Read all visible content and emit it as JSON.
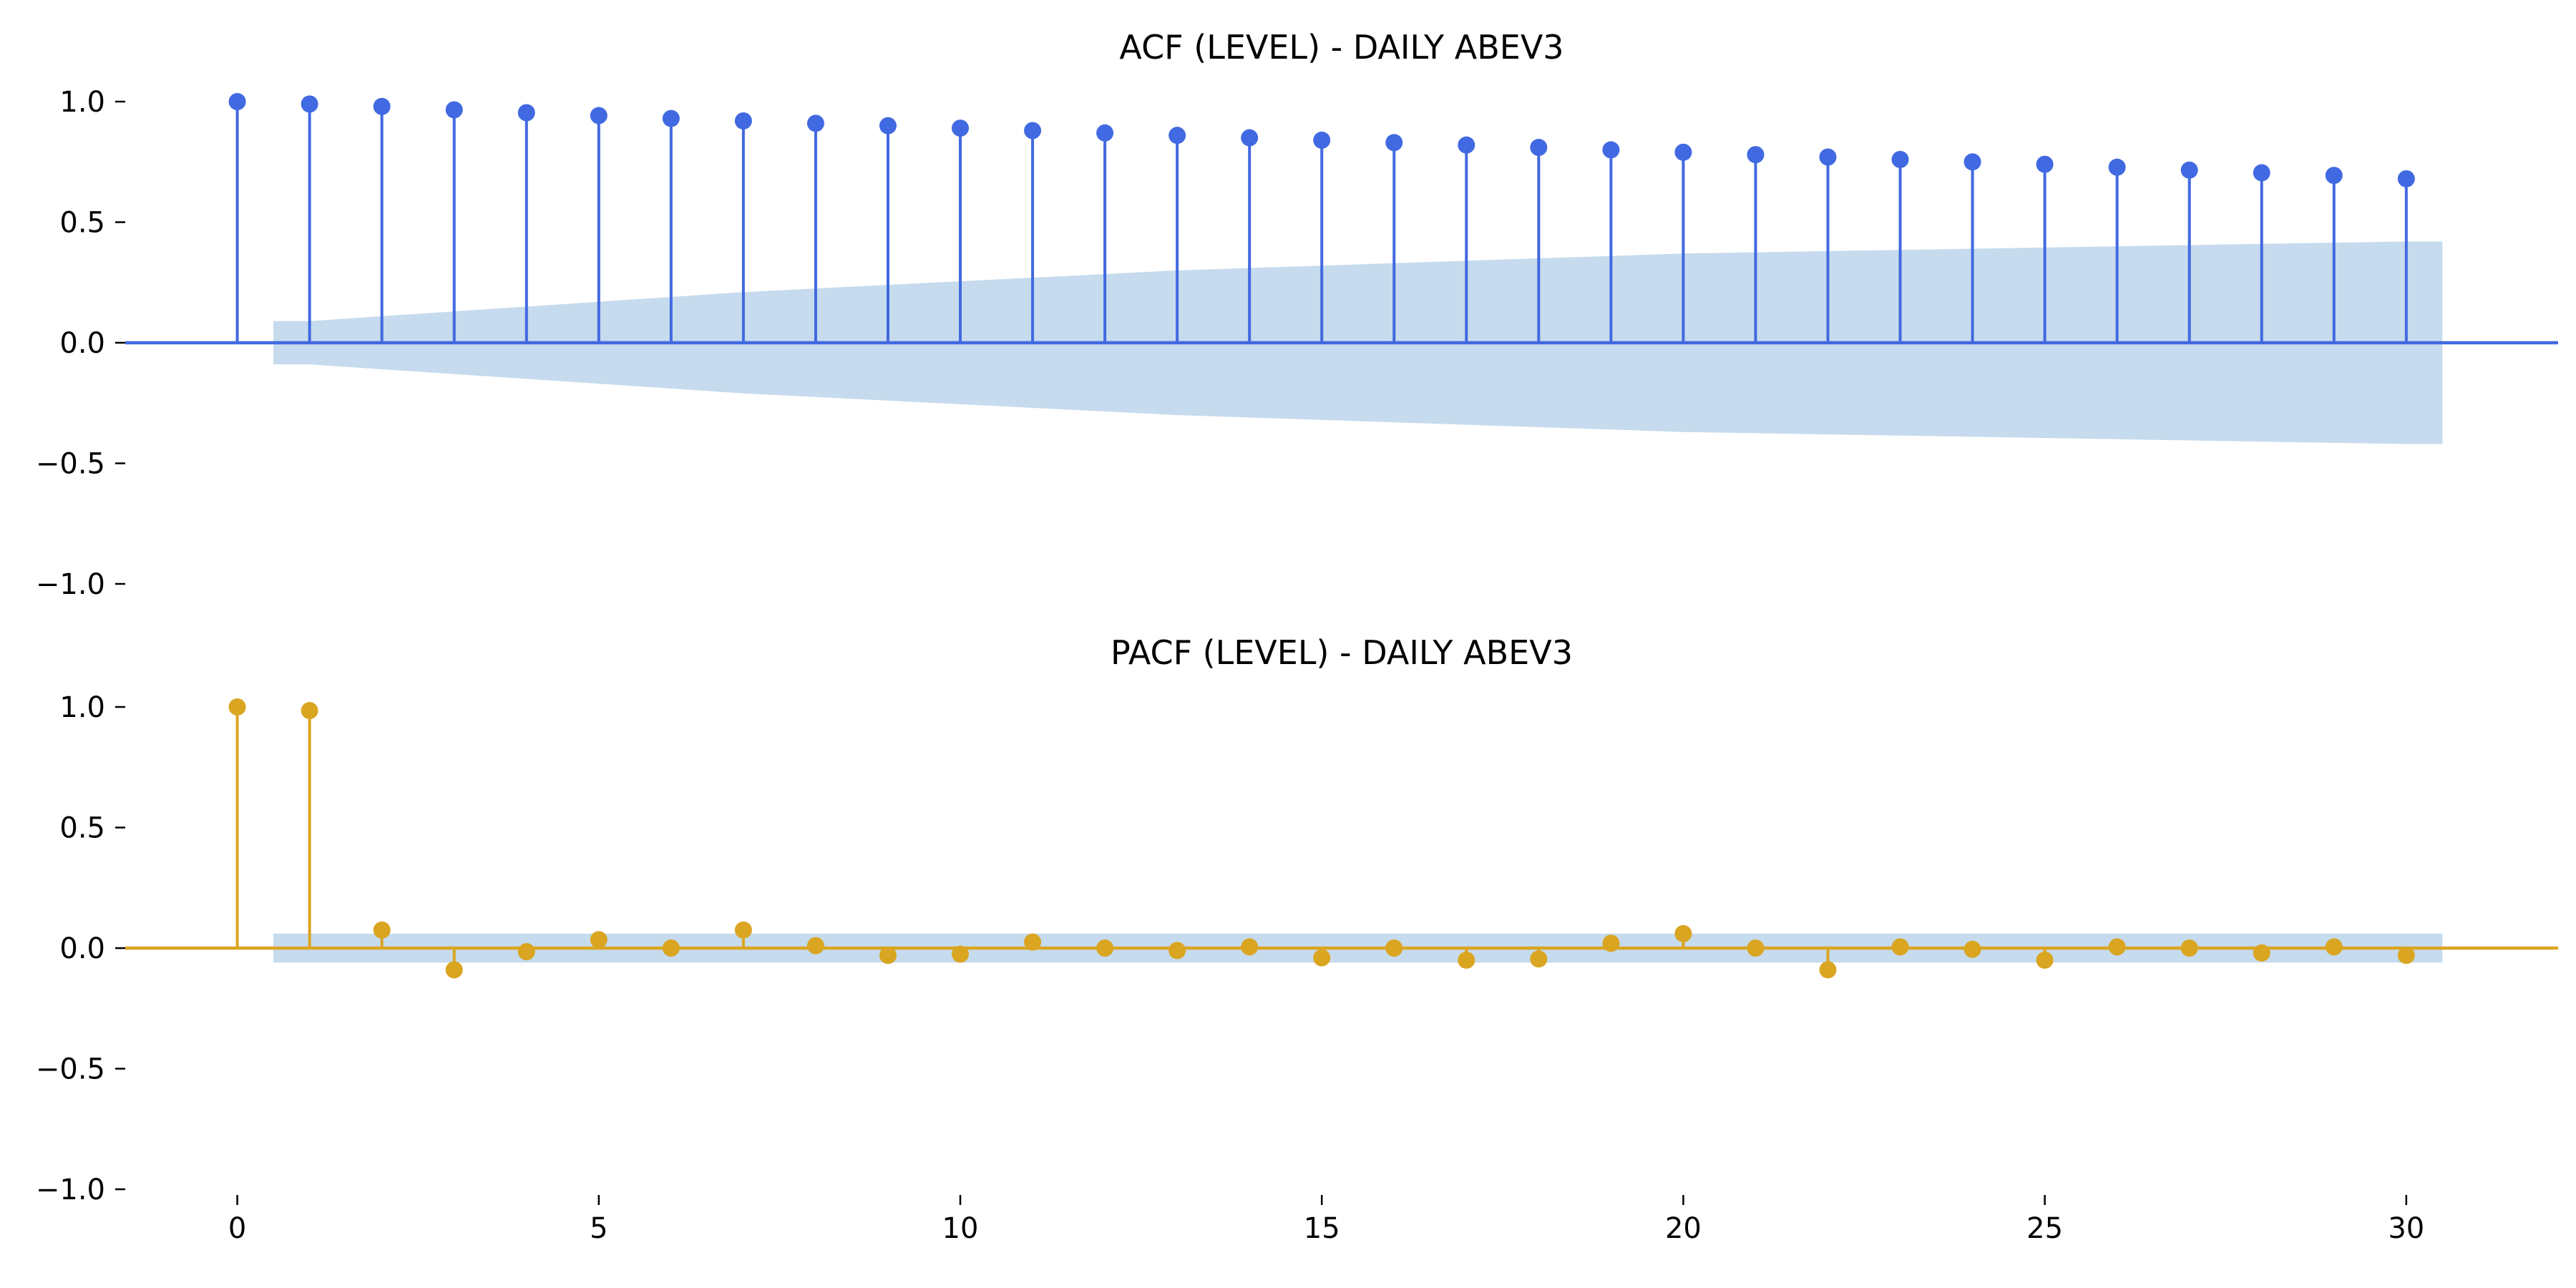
{
  "chart_data": [
    {
      "type": "stem",
      "title": "ACF (LEVEL) - DAILY ABEV3",
      "xlabel": "",
      "ylabel": "",
      "xlim": [
        -1.55,
        32.1
      ],
      "ylim": [
        -1.0,
        1.0
      ],
      "yticks": [
        "1.0",
        "0.5",
        "0.0",
        "−0.5",
        "−1.0"
      ],
      "ytick_values": [
        1.0,
        0.5,
        0.0,
        -0.5,
        -1.0
      ],
      "x_ticks_shown": false,
      "grid": false,
      "legend": false,
      "color": "#4169e1",
      "band_color": "#c6dbed",
      "lags": [
        0,
        1,
        2,
        3,
        4,
        5,
        6,
        7,
        8,
        9,
        10,
        11,
        12,
        13,
        14,
        15,
        16,
        17,
        18,
        19,
        20,
        21,
        22,
        23,
        24,
        25,
        26,
        27,
        28,
        29,
        30
      ],
      "values": [
        1.0,
        0.99,
        0.98,
        0.966,
        0.954,
        0.942,
        0.93,
        0.92,
        0.91,
        0.9,
        0.89,
        0.88,
        0.87,
        0.86,
        0.85,
        0.84,
        0.83,
        0.82,
        0.81,
        0.8,
        0.79,
        0.78,
        0.77,
        0.76,
        0.75,
        0.74,
        0.728,
        0.716,
        0.705,
        0.694,
        0.68
      ],
      "confint_upper": [
        0.06,
        0.09,
        0.11,
        0.13,
        0.15,
        0.17,
        0.19,
        0.21,
        0.225,
        0.24,
        0.255,
        0.27,
        0.285,
        0.3,
        0.31,
        0.32,
        0.33,
        0.34,
        0.35,
        0.36,
        0.37,
        0.375,
        0.38,
        0.385,
        0.39,
        0.395,
        0.4,
        0.405,
        0.41,
        0.415,
        0.42
      ]
    },
    {
      "type": "stem",
      "title": "PACF (LEVEL) - DAILY ABEV3",
      "xlabel": "",
      "ylabel": "",
      "xlim": [
        -1.55,
        32.1
      ],
      "ylim": [
        -1.0,
        1.0
      ],
      "yticks": [
        "1.0",
        "0.5",
        "0.0",
        "−0.5",
        "−1.0"
      ],
      "ytick_values": [
        1.0,
        0.5,
        0.0,
        -0.5,
        -1.0
      ],
      "xticks": [
        "0",
        "5",
        "10",
        "15",
        "20",
        "25",
        "30"
      ],
      "xtick_values": [
        0,
        5,
        10,
        15,
        20,
        25,
        30
      ],
      "x_ticks_shown": true,
      "grid": false,
      "legend": false,
      "color": "#daa520",
      "band_color": "#c6dbed",
      "lags": [
        0,
        1,
        2,
        3,
        4,
        5,
        6,
        7,
        8,
        9,
        10,
        11,
        12,
        13,
        14,
        15,
        16,
        17,
        18,
        19,
        20,
        21,
        22,
        23,
        24,
        25,
        26,
        27,
        28,
        29,
        30
      ],
      "values": [
        1.0,
        0.985,
        0.075,
        -0.09,
        -0.015,
        0.035,
        0.0,
        0.075,
        0.01,
        -0.03,
        -0.025,
        0.025,
        0.0,
        -0.01,
        0.005,
        -0.04,
        0.0,
        -0.05,
        -0.045,
        0.02,
        0.06,
        0.0,
        -0.09,
        0.005,
        -0.005,
        -0.05,
        0.005,
        0.0,
        -0.02,
        0.005,
        -0.03
      ],
      "confint_upper": [
        0.06,
        0.06,
        0.06,
        0.06,
        0.06,
        0.06,
        0.06,
        0.06,
        0.06,
        0.06,
        0.06,
        0.06,
        0.06,
        0.06,
        0.06,
        0.06,
        0.06,
        0.06,
        0.06,
        0.06,
        0.06,
        0.06,
        0.06,
        0.06,
        0.06,
        0.06,
        0.06,
        0.06,
        0.06,
        0.06,
        0.06
      ]
    }
  ]
}
